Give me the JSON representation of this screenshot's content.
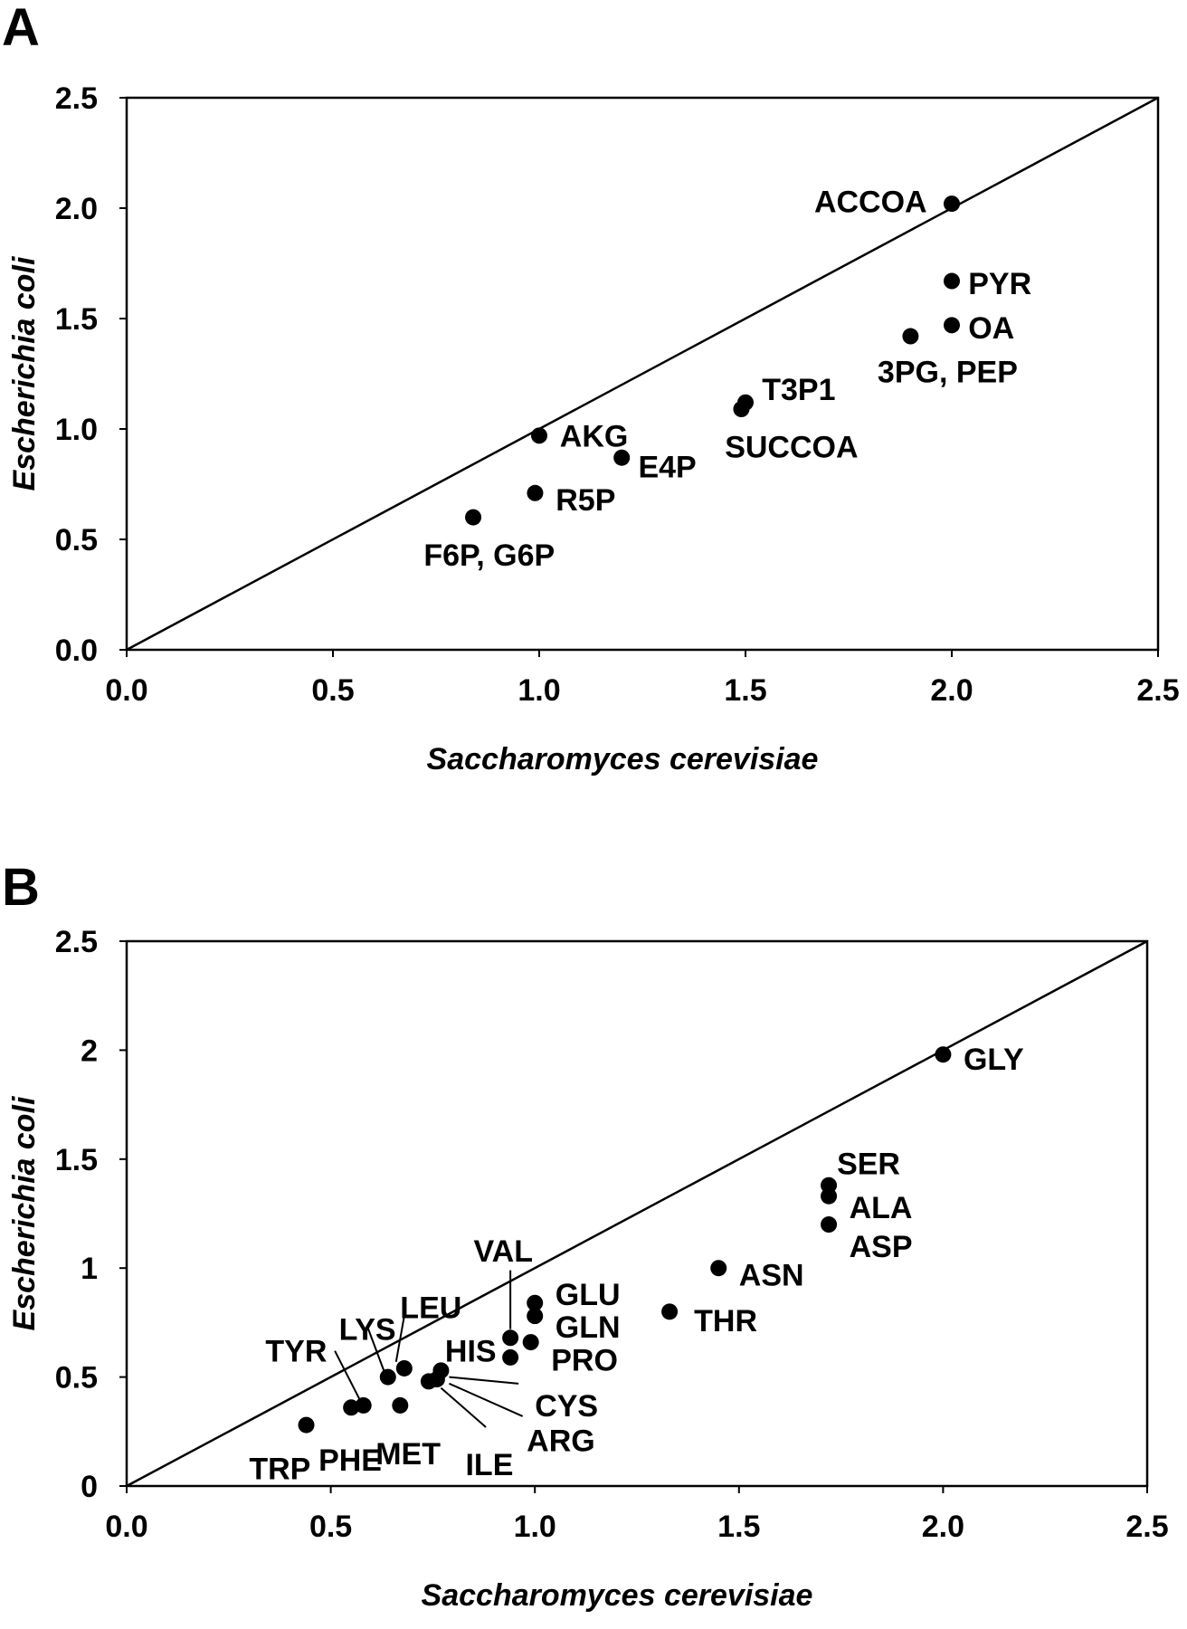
{
  "chart_data": [
    {
      "type": "scatter",
      "panel": "A",
      "xlabel": "Saccharomyces cerevisiae",
      "ylabel": "Escherichia coli",
      "xlim": [
        0,
        2.5
      ],
      "ylim": [
        0,
        2.5
      ],
      "x_ticks": [
        "0.0",
        "0.5",
        "1.0",
        "1.5",
        "2.0",
        "2.5"
      ],
      "y_ticks": [
        "0.0",
        "0.5",
        "1.0",
        "1.5",
        "2.0",
        "2.5"
      ],
      "reference_line": "y = x",
      "points": [
        {
          "x": 2.0,
          "y": 2.02
        },
        {
          "x": 2.0,
          "y": 1.67
        },
        {
          "x": 2.0,
          "y": 1.47
        },
        {
          "x": 1.9,
          "y": 1.42
        },
        {
          "x": 1.5,
          "y": 1.12
        },
        {
          "x": 1.49,
          "y": 1.09
        },
        {
          "x": 1.0,
          "y": 0.97
        },
        {
          "x": 1.2,
          "y": 0.87
        },
        {
          "x": 0.99,
          "y": 0.71
        },
        {
          "x": 0.84,
          "y": 0.6
        }
      ],
      "labels": [
        {
          "text": "ACCOA",
          "x": 1.94,
          "y": 2.03,
          "anchor": "end"
        },
        {
          "text": "PYR",
          "x": 2.04,
          "y": 1.66,
          "anchor": "start"
        },
        {
          "text": "OA",
          "x": 2.04,
          "y": 1.46,
          "anchor": "start"
        },
        {
          "text": "3PG, PEP",
          "x": 1.82,
          "y": 1.26,
          "anchor": "start"
        },
        {
          "text": "T3P1",
          "x": 1.54,
          "y": 1.18,
          "anchor": "start"
        },
        {
          "text": "SUCCOA",
          "x": 1.45,
          "y": 0.92,
          "anchor": "start"
        },
        {
          "text": "AKG",
          "x": 1.05,
          "y": 0.97,
          "anchor": "start"
        },
        {
          "text": "E4P",
          "x": 1.24,
          "y": 0.83,
          "anchor": "start"
        },
        {
          "text": "R5P",
          "x": 1.04,
          "y": 0.68,
          "anchor": "start"
        },
        {
          "text": "F6P, G6P",
          "x": 0.72,
          "y": 0.43,
          "anchor": "start"
        }
      ]
    },
    {
      "type": "scatter",
      "panel": "B",
      "xlabel": "Saccharomyces cerevisiae",
      "ylabel": "Escherichia coli",
      "xlim": [
        0,
        2.5
      ],
      "ylim": [
        0,
        2.5
      ],
      "x_ticks": [
        "0.0",
        "0.5",
        "1.0",
        "1.5",
        "2.0",
        "2.5"
      ],
      "y_ticks": [
        "0",
        "0.5",
        "1",
        "1.5",
        "2",
        "2.5"
      ],
      "reference_line": "y = x",
      "points": [
        {
          "x": 2.0,
          "y": 1.98
        },
        {
          "x": 1.72,
          "y": 1.38
        },
        {
          "x": 1.72,
          "y": 1.33
        },
        {
          "x": 1.72,
          "y": 1.2
        },
        {
          "x": 1.45,
          "y": 1.0
        },
        {
          "x": 1.33,
          "y": 0.8
        },
        {
          "x": 1.0,
          "y": 0.84
        },
        {
          "x": 1.0,
          "y": 0.78
        },
        {
          "x": 0.99,
          "y": 0.66
        },
        {
          "x": 0.94,
          "y": 0.68
        },
        {
          "x": 0.94,
          "y": 0.59
        },
        {
          "x": 0.77,
          "y": 0.53
        },
        {
          "x": 0.76,
          "y": 0.49
        },
        {
          "x": 0.74,
          "y": 0.48
        },
        {
          "x": 0.68,
          "y": 0.54
        },
        {
          "x": 0.64,
          "y": 0.5
        },
        {
          "x": 0.67,
          "y": 0.37
        },
        {
          "x": 0.58,
          "y": 0.37
        },
        {
          "x": 0.55,
          "y": 0.36
        },
        {
          "x": 0.44,
          "y": 0.28
        }
      ],
      "labels": [
        {
          "text": "GLY",
          "x": 2.05,
          "y": 1.96,
          "anchor": "start"
        },
        {
          "text": "SER",
          "x": 1.74,
          "y": 1.48,
          "anchor": "start"
        },
        {
          "text": "ALA",
          "x": 1.77,
          "y": 1.28,
          "anchor": "start"
        },
        {
          "text": "ASP",
          "x": 1.77,
          "y": 1.1,
          "anchor": "start"
        },
        {
          "text": "ASN",
          "x": 1.5,
          "y": 0.97,
          "anchor": "start"
        },
        {
          "text": "THR",
          "x": 1.39,
          "y": 0.76,
          "anchor": "start"
        },
        {
          "text": "GLU",
          "x": 1.05,
          "y": 0.88,
          "anchor": "start"
        },
        {
          "text": "GLN",
          "x": 1.05,
          "y": 0.73,
          "anchor": "start"
        },
        {
          "text": "PRO",
          "x": 1.04,
          "y": 0.58,
          "anchor": "start"
        },
        {
          "text": "HIS",
          "x": 0.78,
          "y": 0.62,
          "anchor": "start"
        },
        {
          "text": "VAL",
          "x": 0.85,
          "y": 1.08,
          "anchor": "start"
        },
        {
          "text": "CYS",
          "x": 1.0,
          "y": 0.37,
          "anchor": "start"
        },
        {
          "text": "ARG",
          "x": 0.98,
          "y": 0.21,
          "anchor": "start"
        },
        {
          "text": "ILE",
          "x": 0.83,
          "y": 0.1,
          "anchor": "start"
        },
        {
          "text": "MET",
          "x": 0.61,
          "y": 0.15,
          "anchor": "start"
        },
        {
          "text": "LEU",
          "x": 0.67,
          "y": 0.82,
          "anchor": "start"
        },
        {
          "text": "LYS",
          "x": 0.52,
          "y": 0.72,
          "anchor": "start"
        },
        {
          "text": "TYR",
          "x": 0.34,
          "y": 0.62,
          "anchor": "start"
        },
        {
          "text": "PHE",
          "x": 0.47,
          "y": 0.12,
          "anchor": "start"
        },
        {
          "text": "TRP",
          "x": 0.3,
          "y": 0.08,
          "anchor": "start"
        }
      ],
      "leaders": [
        {
          "from": [
            0.94,
            0.99
          ],
          "to": [
            0.94,
            0.72
          ]
        },
        {
          "from": [
            0.68,
            0.78
          ],
          "to": [
            0.66,
            0.57
          ]
        },
        {
          "from": [
            0.59,
            0.73
          ],
          "to": [
            0.63,
            0.53
          ]
        },
        {
          "from": [
            0.51,
            0.62
          ],
          "to": [
            0.57,
            0.4
          ]
        },
        {
          "from": [
            0.96,
            0.47
          ],
          "to": [
            0.79,
            0.5
          ]
        },
        {
          "from": [
            0.97,
            0.32
          ],
          "to": [
            0.79,
            0.47
          ]
        },
        {
          "from": [
            0.88,
            0.27
          ],
          "to": [
            0.77,
            0.45
          ]
        }
      ]
    }
  ]
}
